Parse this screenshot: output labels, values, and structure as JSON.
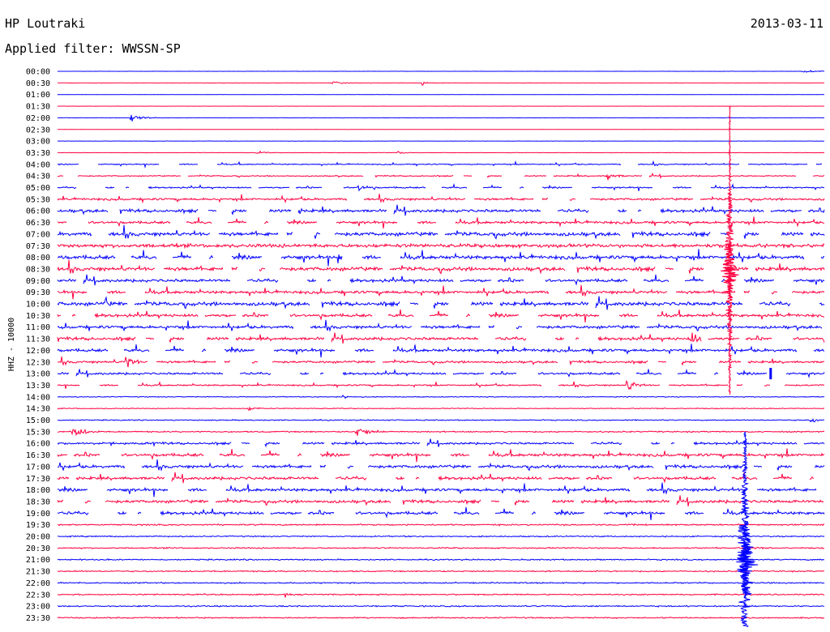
{
  "header": {
    "station": "HP Loutraki",
    "date": "2013-03-11",
    "filter": "Applied filter: WWSSN-SP"
  },
  "colors": {
    "even_trace": "#0000ff",
    "odd_trace": "#ff0040",
    "background": "#ffffff",
    "text": "#000000"
  },
  "chart_data": {
    "type": "helicorder",
    "ylabel": "HHZ - 10000",
    "row_labels": [
      "00:00",
      "00:30",
      "01:00",
      "01:30",
      "02:00",
      "02:30",
      "03:00",
      "03:30",
      "04:00",
      "04:30",
      "05:00",
      "05:30",
      "06:00",
      "06:30",
      "07:00",
      "07:30",
      "08:00",
      "08:30",
      "09:00",
      "09:30",
      "10:00",
      "10:30",
      "11:00",
      "11:30",
      "12:00",
      "12:30",
      "13:00",
      "13:30",
      "14:00",
      "14:30",
      "15:00",
      "15:30",
      "16:00",
      "16:30",
      "17:00",
      "17:30",
      "18:00",
      "18:30",
      "19:00",
      "19:30",
      "20:00",
      "20:30",
      "21:00",
      "21:30",
      "22:00",
      "22:30",
      "23:00",
      "23:30"
    ],
    "minutes_per_line": 30,
    "grid": false,
    "noise_level": [
      0.3,
      0.5,
      0.3,
      0.3,
      0.5,
      0.3,
      0.3,
      0.5,
      1.5,
      1.5,
      2,
      3,
      4,
      3.5,
      5,
      5,
      5,
      5,
      4,
      4,
      5,
      4,
      4,
      4,
      4,
      3,
      3,
      2,
      1.2,
      1.2,
      1.5,
      1.8,
      3,
      4,
      4,
      4,
      4,
      4,
      4,
      2,
      1.8,
      1.8,
      1.8,
      1.8,
      1.8,
      1.8,
      1.8,
      1.8
    ],
    "gappy_rows": [
      8,
      9,
      10,
      11,
      12,
      13,
      14,
      16,
      17,
      18,
      19,
      20,
      21,
      22,
      23,
      24,
      25,
      26,
      27,
      32,
      33,
      34,
      35,
      36,
      37,
      38
    ],
    "events": [
      {
        "row": 0,
        "minute": 29.2,
        "amplitude": 3,
        "duration_min": 1.2
      },
      {
        "row": 1,
        "minute": 10.8,
        "amplitude": 3,
        "duration_min": 0.8
      },
      {
        "row": 1,
        "minute": 14.3,
        "amplitude": 4,
        "duration_min": 0.6
      },
      {
        "row": 4,
        "minute": 2.9,
        "amplitude": 7,
        "duration_min": 1.0
      },
      {
        "row": 7,
        "minute": 7.8,
        "amplitude": 3,
        "duration_min": 0.8
      },
      {
        "row": 7,
        "minute": 13.3,
        "amplitude": 3,
        "duration_min": 0.8
      },
      {
        "row": 9,
        "minute": 21.5,
        "amplitude": 10,
        "duration_min": 0.8
      },
      {
        "row": 10,
        "minute": 11.8,
        "amplitude": 8,
        "duration_min": 0.8
      },
      {
        "row": 12,
        "minute": 9.2,
        "amplitude": 10,
        "duration_min": 0.8
      },
      {
        "row": 14,
        "minute": 9.9,
        "amplitude": 14,
        "duration_min": 0.6
      },
      {
        "row": 16,
        "minute": 11.0,
        "amplitude": 12,
        "duration_min": 0.6
      },
      {
        "row": 20,
        "minute": 1.9,
        "amplitude": 10,
        "duration_min": 0.6
      },
      {
        "row": 23,
        "minute": 24.8,
        "amplitude": 14,
        "duration_min": 0.8
      },
      {
        "row": 25,
        "minute": 2.7,
        "amplitude": 18,
        "duration_min": 0.6
      },
      {
        "row": 27,
        "minute": 22.3,
        "amplitude": 12,
        "duration_min": 0.8
      },
      {
        "row": 28,
        "minute": 11.2,
        "amplitude": 4,
        "duration_min": 0.6
      },
      {
        "row": 29,
        "minute": 7.5,
        "amplitude": 4,
        "duration_min": 0.8
      },
      {
        "row": 30,
        "minute": 29.5,
        "amplitude": 7,
        "duration_min": 0.5
      },
      {
        "row": 31,
        "minute": 0.6,
        "amplitude": 10,
        "duration_min": 1.2
      },
      {
        "row": 31,
        "minute": 11.7,
        "amplitude": 10,
        "duration_min": 1.2
      },
      {
        "row": 41,
        "minute": 26.8,
        "amplitude": 4,
        "duration_min": 1.6
      },
      {
        "row": 45,
        "minute": 8.9,
        "amplitude": 5,
        "duration_min": 0.4
      }
    ],
    "major_events": [
      {
        "start_row": 4,
        "end_row": 27,
        "minute": 26.3,
        "peak_row": 17,
        "amplitude_px": 60
      },
      {
        "start_row": 32,
        "end_row": 47,
        "minute": 26.9,
        "peak_row": 42,
        "amplitude_px": 80
      }
    ],
    "trace_end_marker": {
      "row": 26,
      "minute": 27.9
    }
  }
}
